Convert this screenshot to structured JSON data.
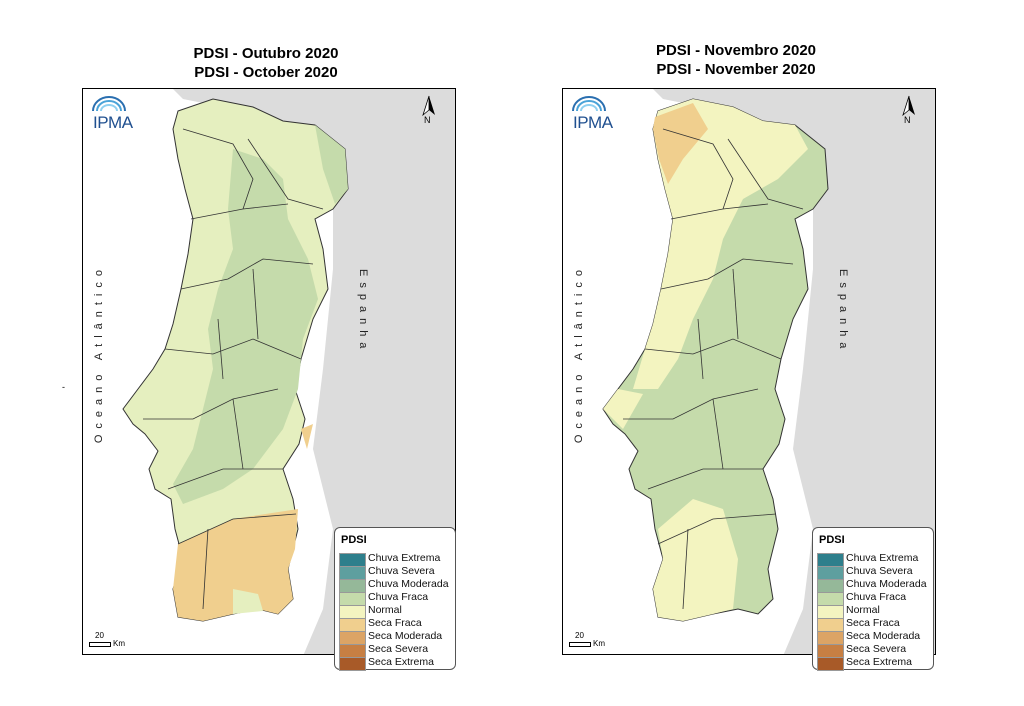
{
  "maps": [
    {
      "title_pt": "PDSI - Outubro 2020",
      "title_en": "PDSI - October 2020",
      "ocean_label": "Oceano Atlântico",
      "spain_label": "Espanha",
      "logo_text": "IPMA",
      "north_label": "N",
      "scale_value": "20",
      "scale_unit": "Km"
    },
    {
      "title_pt": "PDSI - Novembro 2020",
      "title_en": "PDSI - November 2020",
      "ocean_label": "Oceano Atlântico",
      "spain_label": "Espanha",
      "logo_text": "IPMA",
      "north_label": "N",
      "scale_value": "20",
      "scale_unit": "Km"
    }
  ],
  "legend": {
    "title": "PDSI",
    "items": [
      {
        "label": "Chuva Extrema",
        "color": "#2e7f8c"
      },
      {
        "label": "Chuva Severa",
        "color": "#5e9f9f"
      },
      {
        "label": "Chuva Moderada",
        "color": "#95b899"
      },
      {
        "label": "Chuva Fraca",
        "color": "#c5dbab"
      },
      {
        "label": "Normal",
        "color": "#f3f4c0"
      },
      {
        "label": "Seca Fraca",
        "color": "#f0cf8e"
      },
      {
        "label": "Seca Moderada",
        "color": "#dca465"
      },
      {
        "label": "Seca Severa",
        "color": "#c77f43"
      },
      {
        "label": "Seca Extrema",
        "color": "#a85a28"
      }
    ]
  },
  "stray_mark": "-"
}
